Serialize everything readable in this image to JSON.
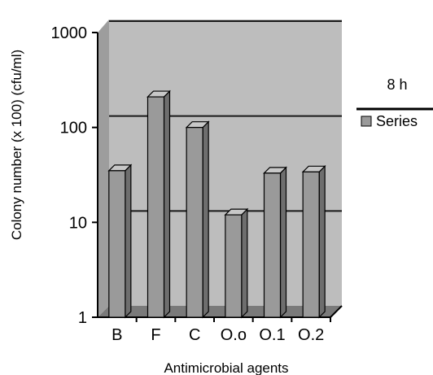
{
  "chart_data": {
    "type": "bar",
    "title": "",
    "xlabel": "Antimicrobial agents",
    "ylabel": "Colony number (x 100)  (cfu/ml)",
    "yscale": "log",
    "ylim": [
      1,
      1000
    ],
    "yticks": [
      "1",
      "10",
      "100",
      "1000"
    ],
    "categories": [
      "B",
      "F",
      "C",
      "O.o",
      "O.1",
      "O.2"
    ],
    "series": [
      {
        "name": "Series",
        "values": [
          35,
          210,
          100,
          12,
          33,
          34
        ]
      }
    ],
    "legend": {
      "title": "8 h",
      "position": "right"
    },
    "grid": true,
    "colors": {
      "wall": "#bdbdbd",
      "floor": "#7a7a7a",
      "bar_front": "#9a9a9a",
      "bar_side": "#6e6e6e",
      "bar_top": "#c8c8c8",
      "gridline": "#1a1a1a"
    }
  }
}
